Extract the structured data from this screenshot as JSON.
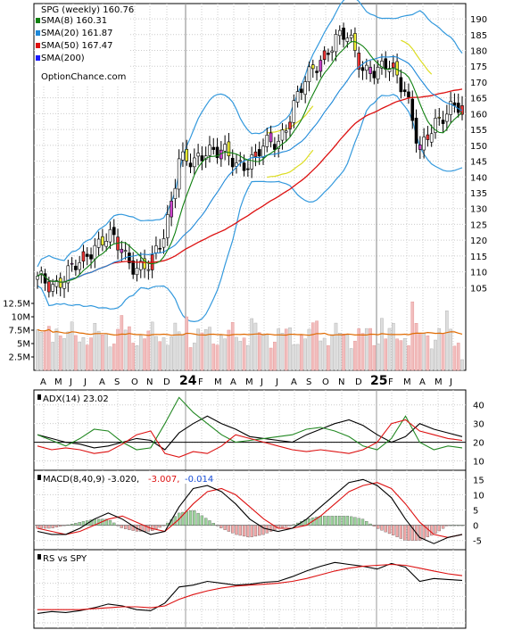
{
  "chart_data": [
    {
      "panel": "price",
      "type": "candlestick",
      "title": "SPG (weekly) 160.76",
      "watermark": "OptionChance.com",
      "legend": [
        {
          "label": "SMA(8) 160.31",
          "color": "#108010"
        },
        {
          "label": "SMA(20) 161.87",
          "color": "#1e88d8"
        },
        {
          "label": "SMA(50) 167.47",
          "color": "#dd1111"
        },
        {
          "label": "SMA(200)",
          "color": "#1a1aff"
        }
      ],
      "legend_placement": "top-left",
      "x_labels": [
        "A",
        "M",
        "J",
        "J",
        "A",
        "S",
        "O",
        "N",
        "D",
        "24",
        "F",
        "M",
        "A",
        "M",
        "J",
        "J",
        "A",
        "S",
        "O",
        "N",
        "D",
        "25",
        "F",
        "M",
        "A",
        "M",
        "J"
      ],
      "y_ticks": [
        105,
        110,
        115,
        120,
        125,
        130,
        135,
        140,
        145,
        150,
        155,
        160,
        165,
        170,
        175,
        180,
        185,
        190
      ],
      "ylim": [
        100,
        192
      ],
      "bollinger_color": "#3399dd",
      "upper_overlay_color": "#dddd22",
      "grid": true,
      "closes_monthly": [
        107,
        106,
        109,
        112,
        119,
        121,
        116,
        112,
        111,
        123,
        146,
        143,
        150,
        148,
        143,
        146,
        149,
        151,
        162,
        170,
        178,
        183,
        184,
        175,
        172,
        176,
        168,
        146,
        158,
        161,
        161
      ],
      "volume_ticks": [
        "2.5M",
        "5M",
        "7.5M",
        "10M",
        "12.5M"
      ],
      "volume_ylim": [
        0,
        13500000
      ],
      "volume_ma_color": "#e06a00"
    },
    {
      "panel": "adx",
      "type": "line",
      "title": "ADX(14) 23.02",
      "y_ticks": [
        10,
        20,
        30,
        40
      ],
      "ylim": [
        5,
        48
      ],
      "reference_line": 20,
      "series": [
        {
          "color": "#000000",
          "values": [
            24,
            22,
            20,
            19,
            17,
            18,
            20,
            22,
            21,
            16,
            25,
            30,
            34,
            30,
            27,
            23,
            22,
            21,
            20,
            24,
            27,
            30,
            32,
            29,
            24,
            20,
            23,
            30,
            27,
            25,
            23
          ]
        },
        {
          "color": "#228822",
          "values": [
            24,
            21,
            18,
            22,
            27,
            26,
            20,
            16,
            17,
            30,
            44,
            36,
            30,
            24,
            20,
            21,
            22,
            23,
            24,
            27,
            28,
            26,
            23,
            18,
            16,
            22,
            34,
            20,
            16,
            18,
            17
          ]
        },
        {
          "color": "#dd1111",
          "values": [
            18,
            16,
            17,
            16,
            14,
            15,
            19,
            24,
            26,
            14,
            12,
            15,
            14,
            18,
            24,
            22,
            20,
            18,
            16,
            15,
            16,
            15,
            14,
            16,
            20,
            30,
            32,
            26,
            24,
            22,
            21
          ]
        }
      ]
    },
    {
      "panel": "macd",
      "type": "line+bar",
      "title": "MACD(8,40,9) -3.020,",
      "values_text": [
        {
          "text": "-3.007,",
          "color": "#dd1111"
        },
        {
          "text": "-0.014",
          "color": "#1a4fd8"
        }
      ],
      "y_ticks": [
        -5,
        0,
        5,
        10,
        15
      ],
      "ylim": [
        -8,
        18
      ],
      "macd": [
        -2,
        -3,
        -3,
        -1,
        2,
        4,
        2,
        -1,
        -3,
        -2,
        6,
        12,
        13,
        11,
        7,
        2,
        -1,
        -2,
        -1,
        2,
        6,
        10,
        14,
        15,
        13,
        9,
        2,
        -4,
        -6,
        -4,
        -3
      ],
      "signal": [
        -1,
        -2,
        -3,
        -2,
        0,
        2,
        3,
        1,
        -1,
        -2,
        2,
        7,
        11,
        12,
        10,
        6,
        2,
        -1,
        -1,
        0,
        3,
        7,
        11,
        13,
        14,
        12,
        7,
        1,
        -3,
        -4,
        -3
      ]
    },
    {
      "panel": "rs",
      "type": "line",
      "title": "RS vs SPY",
      "series": [
        {
          "color": "#000000",
          "values": [
            10,
            12,
            11,
            13,
            16,
            20,
            18,
            14,
            13,
            21,
            38,
            40,
            44,
            42,
            40,
            41,
            43,
            44,
            49,
            55,
            60,
            64,
            62,
            60,
            57,
            63,
            59,
            44,
            47,
            46,
            45
          ]
        },
        {
          "color": "#dd1111",
          "values": [
            14,
            14,
            14,
            14,
            15,
            16,
            17,
            17,
            16,
            18,
            25,
            30,
            34,
            37,
            39,
            40,
            41,
            42,
            44,
            47,
            51,
            55,
            58,
            60,
            61,
            62,
            61,
            58,
            55,
            52,
            50
          ]
        }
      ]
    }
  ]
}
